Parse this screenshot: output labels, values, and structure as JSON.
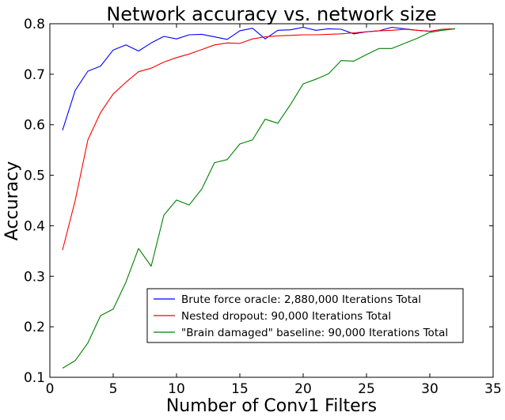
{
  "chart_data": {
    "type": "line",
    "title": "Network accuracy vs. network size",
    "xlabel": "Number of Conv1 Filters",
    "ylabel": "Accuracy",
    "xlim": [
      0,
      35
    ],
    "ylim": [
      0.1,
      0.8
    ],
    "xticks": [
      0,
      5,
      10,
      15,
      20,
      25,
      30,
      35
    ],
    "yticks": [
      0.1,
      0.2,
      0.3,
      0.4,
      0.5,
      0.6,
      0.7,
      0.8
    ],
    "grid": false,
    "legend_position": "lower-right",
    "x": [
      1,
      2,
      3,
      4,
      5,
      6,
      7,
      8,
      9,
      10,
      11,
      12,
      13,
      14,
      15,
      16,
      17,
      18,
      19,
      20,
      21,
      22,
      23,
      24,
      25,
      26,
      27,
      28,
      29,
      30,
      31,
      32
    ],
    "series": [
      {
        "name": "Brute force oracle: 2,880,000 Iterations Total",
        "color": "#0000ff",
        "values": [
          0.589,
          0.668,
          0.706,
          0.716,
          0.748,
          0.758,
          0.746,
          0.762,
          0.775,
          0.77,
          0.778,
          0.779,
          0.774,
          0.769,
          0.786,
          0.791,
          0.77,
          0.787,
          0.788,
          0.793,
          0.787,
          0.79,
          0.789,
          0.78,
          0.784,
          0.786,
          0.793,
          0.79,
          0.787,
          0.785,
          0.789,
          0.79
        ]
      },
      {
        "name": "Nested dropout: 90,000 Iterations Total",
        "color": "#ff0000",
        "values": [
          0.352,
          0.45,
          0.57,
          0.624,
          0.661,
          0.684,
          0.705,
          0.712,
          0.724,
          0.733,
          0.74,
          0.749,
          0.758,
          0.762,
          0.761,
          0.77,
          0.774,
          0.776,
          0.777,
          0.778,
          0.778,
          0.779,
          0.78,
          0.782,
          0.784,
          0.786,
          0.787,
          0.789,
          0.787,
          0.785,
          0.789,
          0.79
        ]
      },
      {
        "name": "\"Brain damaged\" baseline: 90,000 Iterations Total",
        "color": "#008000",
        "values": [
          0.118,
          0.133,
          0.168,
          0.222,
          0.235,
          0.288,
          0.355,
          0.32,
          0.421,
          0.451,
          0.441,
          0.473,
          0.525,
          0.531,
          0.562,
          0.57,
          0.611,
          0.603,
          0.64,
          0.681,
          0.69,
          0.701,
          0.727,
          0.726,
          0.739,
          0.751,
          0.751,
          0.761,
          0.771,
          0.783,
          0.787,
          0.79
        ]
      }
    ]
  }
}
